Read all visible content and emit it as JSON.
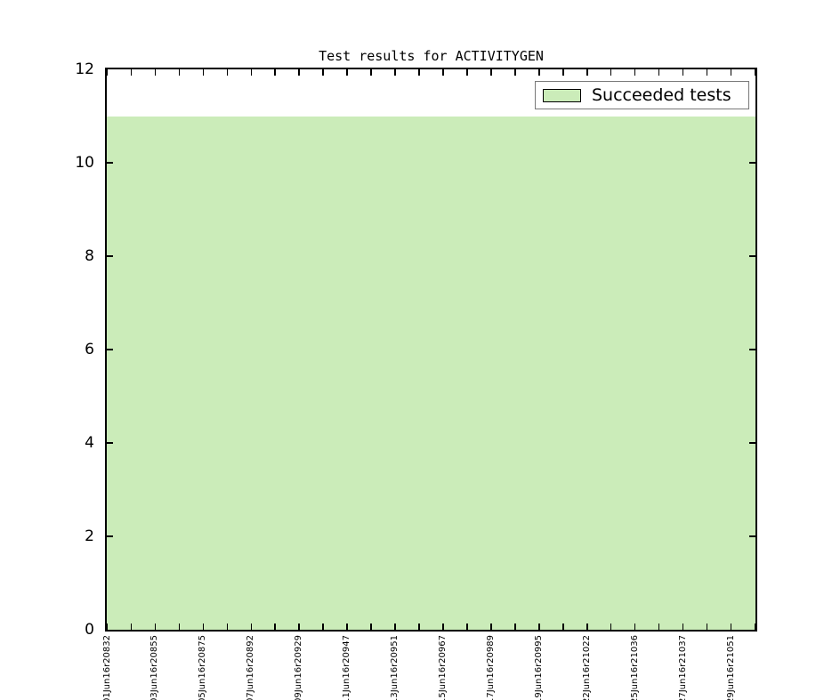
{
  "figure": {
    "title": "Test results for ACTIVITYGEN",
    "legend": {
      "label": "Succeeded tests"
    }
  },
  "chart_data": {
    "type": "bar",
    "title": "Test results for ACTIVITYGEN",
    "xlabel": "",
    "ylabel": "",
    "categories": [
      "01Jun16r20832",
      "03Jun16r20855",
      "05Jun16r20875",
      "07Jun16r20892",
      "09Jun16r20929",
      "11Jun16r20947",
      "13Jun16r20951",
      "15Jun16r20967",
      "17Jun16r20989",
      "19Jun16r20995",
      "22Jun16r21022",
      "25Jun16r21036",
      "27Jun16r21037",
      "29Jun16r21051"
    ],
    "series": [
      {
        "name": "Succeeded tests",
        "values": [
          11,
          11,
          11,
          11,
          11,
          11,
          11,
          11,
          11,
          11,
          11,
          11,
          11,
          11
        ]
      }
    ],
    "ylim": [
      0,
      12
    ],
    "yticks": [
      0,
      2,
      4,
      6,
      8,
      10,
      12
    ],
    "n_x_ticks": 28,
    "label_every_n_ticks": 2,
    "grid": false,
    "legend_position": "upper right",
    "colors": {
      "succeeded_fill": "#cbecb9",
      "axis": "#000000",
      "legend_border": "#787878",
      "text": "#000000"
    }
  }
}
